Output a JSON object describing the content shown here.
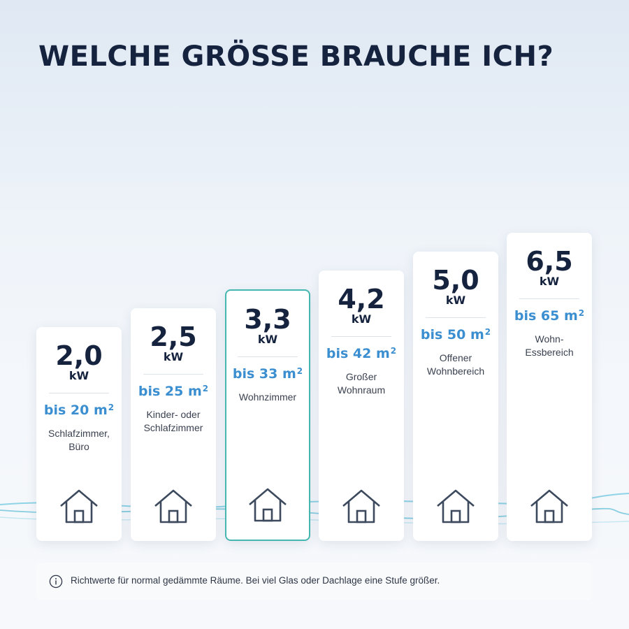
{
  "title": "WELCHE GRÖSSE BRAUCHE ICH?",
  "accent_color": "#3b8fd0",
  "highlight_color": "#45b7b0",
  "cards": [
    {
      "power": "2,0",
      "unit": "kW",
      "area": "bis 20 m",
      "area_sup": "2",
      "room": "Schlafzimmer,\nBüro",
      "icon": "house-icon",
      "highlighted": false
    },
    {
      "power": "2,5",
      "unit": "kW",
      "area": "bis 25 m",
      "area_sup": "2",
      "room": "Kinder- oder\nSchlafzimmer",
      "icon": "house-icon",
      "highlighted": false
    },
    {
      "power": "3,3",
      "unit": "kW",
      "area": "bis 33 m",
      "area_sup": "2",
      "room": "Wohnzimmer",
      "icon": "house-icon",
      "highlighted": true
    },
    {
      "power": "4,2",
      "unit": "kW",
      "area": "bis 42 m",
      "area_sup": "2",
      "room": "Großer\nWohnraum",
      "icon": "house-icon",
      "highlighted": false
    },
    {
      "power": "5,0",
      "unit": "kW",
      "area": "bis 50 m",
      "area_sup": "2",
      "room": "Offener\nWohnbereich",
      "icon": "house-icon",
      "highlighted": false
    },
    {
      "power": "6,5",
      "unit": "kW",
      "area": "bis 65 m",
      "area_sup": "2",
      "room": "Wohn-Essbereich",
      "icon": "house-icon",
      "highlighted": false
    }
  ],
  "note": {
    "icon": "info-icon",
    "text": "Richtwerte für normal gedämmte Räume. Bei viel Glas oder Dachlage eine Stufe größer."
  }
}
